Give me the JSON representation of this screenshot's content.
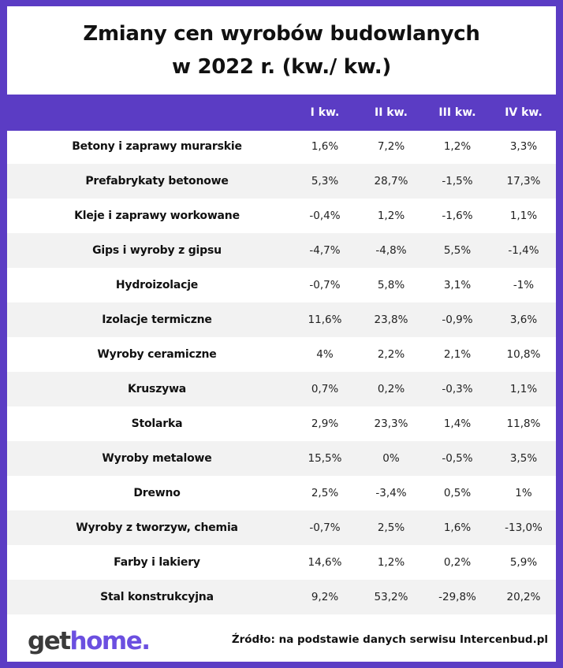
{
  "title": {
    "line1": "Zmiany cen wyrobów budowlanych",
    "line2": "w 2022 r. (kw./ kw.)"
  },
  "table": {
    "headers": [
      "I kw.",
      "II kw.",
      "III kw.",
      "IV kw."
    ],
    "rows": [
      {
        "name": "Betony i zaprawy murarskie",
        "values": [
          "1,6%",
          "7,2%",
          "1,2%",
          "3,3%"
        ]
      },
      {
        "name": "Prefabrykaty betonowe",
        "values": [
          "5,3%",
          "28,7%",
          "-1,5%",
          "17,3%"
        ]
      },
      {
        "name": "Kleje i zaprawy workowane",
        "values": [
          "-0,4%",
          "1,2%",
          "-1,6%",
          "1,1%"
        ]
      },
      {
        "name": "Gips i wyroby z gipsu",
        "values": [
          "-4,7%",
          "-4,8%",
          "5,5%",
          "-1,4%"
        ]
      },
      {
        "name": "Hydroizolacje",
        "values": [
          "-0,7%",
          "5,8%",
          "3,1%",
          "-1%"
        ]
      },
      {
        "name": "Izolacje termiczne",
        "values": [
          "11,6%",
          "23,8%",
          "-0,9%",
          "3,6%"
        ]
      },
      {
        "name": "Wyroby ceramiczne",
        "values": [
          "4%",
          "2,2%",
          "2,1%",
          "10,8%"
        ]
      },
      {
        "name": "Kruszywa",
        "values": [
          "0,7%",
          "0,2%",
          "-0,3%",
          "1,1%"
        ]
      },
      {
        "name": "Stolarka",
        "values": [
          "2,9%",
          "23,3%",
          "1,4%",
          "11,8%"
        ]
      },
      {
        "name": "Wyroby metalowe",
        "values": [
          "15,5%",
          "0%",
          "-0,5%",
          "3,5%"
        ]
      },
      {
        "name": "Drewno",
        "values": [
          "2,5%",
          "-3,4%",
          "0,5%",
          "1%"
        ]
      },
      {
        "name": "Wyroby z tworzyw, chemia",
        "values": [
          "-0,7%",
          "2,5%",
          "1,6%",
          "-13,0%"
        ]
      },
      {
        "name": "Farby i lakiery",
        "values": [
          "14,6%",
          "1,2%",
          "0,2%",
          "5,9%"
        ]
      },
      {
        "name": "Stal konstrukcyjna",
        "values": [
          "9,2%",
          "53,2%",
          "-29,8%",
          "20,2%"
        ]
      }
    ]
  },
  "footer": {
    "logo_part1": "get",
    "logo_part2": "home.",
    "source": "Źródło: na podstawie danych serwisu Intercenbud.pl"
  },
  "colors": {
    "accent": "#5b3cc4",
    "row_alt": "#f2f2f2",
    "logo_accent": "#6b4fe0"
  }
}
